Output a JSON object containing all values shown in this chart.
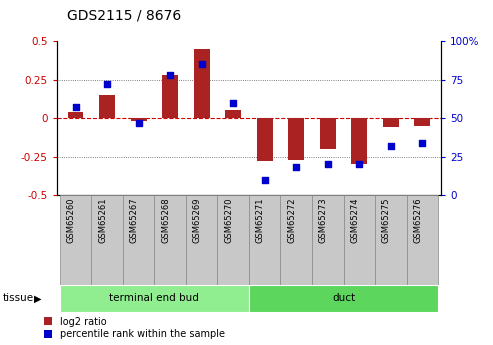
{
  "title": "GDS2115 / 8676",
  "samples": [
    "GSM65260",
    "GSM65261",
    "GSM65267",
    "GSM65268",
    "GSM65269",
    "GSM65270",
    "GSM65271",
    "GSM65272",
    "GSM65273",
    "GSM65274",
    "GSM65275",
    "GSM65276"
  ],
  "log2_ratio": [
    0.04,
    0.15,
    -0.02,
    0.28,
    0.45,
    0.05,
    -0.28,
    -0.27,
    -0.2,
    -0.3,
    -0.06,
    -0.05
  ],
  "percentile_rank": [
    57,
    72,
    47,
    78,
    85,
    60,
    10,
    18,
    20,
    20,
    32,
    34
  ],
  "tissue_groups": [
    {
      "label": "terminal end bud",
      "start": 0,
      "end": 6,
      "color": "#90EE90"
    },
    {
      "label": "duct",
      "start": 6,
      "end": 12,
      "color": "#5CD65C"
    }
  ],
  "bar_color": "#AA2222",
  "dot_color": "#0000CC",
  "ylim_left": [
    -0.5,
    0.5
  ],
  "ylim_right": [
    0,
    100
  ],
  "yticks_left": [
    -0.5,
    -0.25,
    0.0,
    0.25,
    0.5
  ],
  "yticks_right": [
    0,
    25,
    50,
    75,
    100
  ],
  "ytick_labels_left": [
    "-0.5",
    "-0.25",
    "0",
    "0.25",
    "0.5"
  ],
  "ytick_labels_right": [
    "0",
    "25",
    "50",
    "75",
    "100%"
  ],
  "hline_color": "#CC0000",
  "grid_color": "#555555",
  "tissue_label": "tissue",
  "legend_log2": "log2 ratio",
  "legend_pct": "percentile rank within the sample",
  "bar_width": 0.5,
  "dot_size": 25,
  "sample_box_color": "#C8C8C8",
  "sample_box_edge": "#888888"
}
